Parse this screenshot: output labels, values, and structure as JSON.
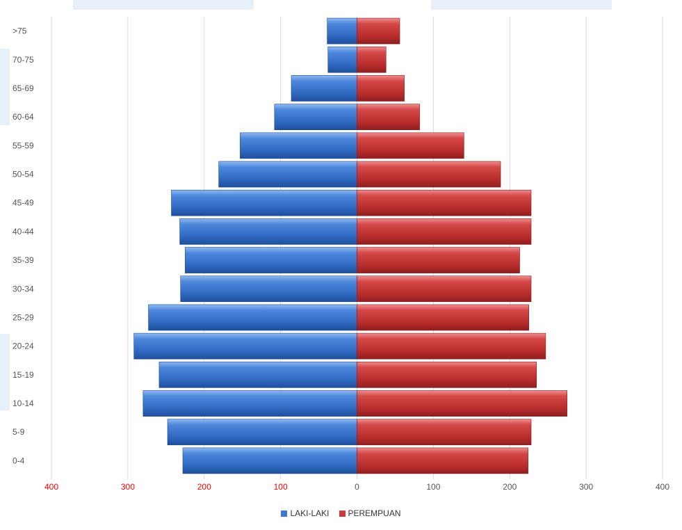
{
  "chart_data": {
    "type": "bar",
    "orientation": "horizontal",
    "diverging": true,
    "categories": [
      "0-4",
      "5-9",
      "10-14",
      "15-19",
      "20-24",
      "25-29",
      "30-34",
      "35-39",
      "40-44",
      "45-49",
      "50-54",
      "55-59",
      "60-64",
      "65-69",
      "70-75",
      ">75"
    ],
    "series": [
      {
        "name": "LAKI-LAKI",
        "side": "left",
        "color": "#3d79d0",
        "values": [
          228,
          248,
          280,
          259,
          292,
          273,
          231,
          225,
          232,
          243,
          181,
          153,
          108,
          86,
          38,
          39
        ]
      },
      {
        "name": "PEREMPUAN",
        "side": "right",
        "color": "#cc3b3b",
        "values": [
          224,
          228,
          275,
          235,
          247,
          225,
          228,
          213,
          228,
          228,
          188,
          140,
          82,
          62,
          38,
          56
        ]
      }
    ],
    "xlim": [
      -400,
      400
    ],
    "x_ticks": [
      -400,
      -300,
      -200,
      -100,
      0,
      100,
      200,
      300,
      400
    ],
    "x_tick_labels": [
      "400",
      "300",
      "200",
      "100",
      "0",
      "100",
      "200",
      "300",
      "400"
    ],
    "x_tick_label_colors": {
      "left": "#ff0000",
      "right": "#555555"
    },
    "title": "",
    "xlabel": "",
    "ylabel": "",
    "grid": "vertical",
    "legend": "bottom-center"
  }
}
